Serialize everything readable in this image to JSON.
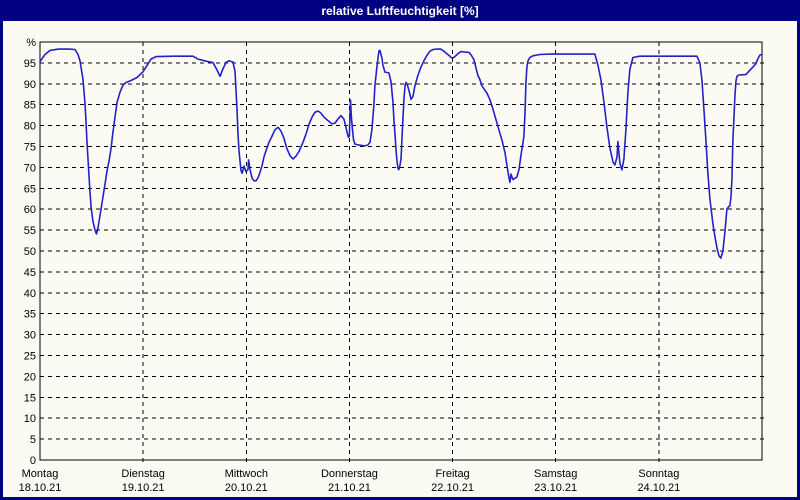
{
  "window": {
    "title": "relative Luftfeuchtigkeit [%]"
  },
  "colors": {
    "titlebar_bg": "#000080",
    "titlebar_text": "#ffffff",
    "window_border": "#000080",
    "canvas_bg": "#fbfbf3",
    "line": "#2222c8",
    "grid": "#000000",
    "label": "#000000"
  },
  "chart_data": {
    "type": "line",
    "title": "relative Luftfeuchtigkeit [%]",
    "ylabel": "%",
    "xlabel": "",
    "ylim": [
      0,
      100
    ],
    "y_ticks": [
      0,
      5,
      10,
      15,
      20,
      25,
      30,
      35,
      40,
      45,
      50,
      55,
      60,
      65,
      70,
      75,
      80,
      85,
      90,
      95
    ],
    "grid": "dashed",
    "legend": "none",
    "x_axis": {
      "unit": "days_since_monday_00h",
      "range": [
        0,
        7
      ],
      "day_labels": [
        {
          "name": "Montag",
          "date": "18.10.21"
        },
        {
          "name": "Dienstag",
          "date": "19.10.21"
        },
        {
          "name": "Mittwoch",
          "date": "20.10.21"
        },
        {
          "name": "Donnerstag",
          "date": "21.10.21"
        },
        {
          "name": "Freitag",
          "date": "22.10.21"
        },
        {
          "name": "Samstag",
          "date": "23.10.21"
        },
        {
          "name": "Sonntag",
          "date": "24.10.21"
        }
      ]
    },
    "series": [
      {
        "name": "relative Luftfeuchtigkeit",
        "color": "#2222c8",
        "points": [
          [
            0.0,
            95.3
          ],
          [
            0.048,
            97.0
          ],
          [
            0.097,
            98.0
          ],
          [
            0.18,
            98.3
          ],
          [
            0.28,
            98.3
          ],
          [
            0.339,
            98.2
          ],
          [
            0.368,
            97.0
          ],
          [
            0.388,
            95.5
          ],
          [
            0.417,
            91.0
          ],
          [
            0.437,
            85.0
          ],
          [
            0.446,
            81.0
          ],
          [
            0.456,
            76.0
          ],
          [
            0.465,
            72.0
          ],
          [
            0.475,
            68.0
          ],
          [
            0.485,
            64.0
          ],
          [
            0.495,
            60.5
          ],
          [
            0.514,
            57.0
          ],
          [
            0.533,
            55.0
          ],
          [
            0.548,
            54.1
          ],
          [
            0.562,
            55.5
          ],
          [
            0.572,
            57.0
          ],
          [
            0.591,
            60.0
          ],
          [
            0.611,
            63.0
          ],
          [
            0.63,
            66.0
          ],
          [
            0.649,
            69.0
          ],
          [
            0.669,
            71.5
          ],
          [
            0.688,
            74.5
          ],
          [
            0.708,
            78.5
          ],
          [
            0.727,
            82.0
          ],
          [
            0.747,
            85.5
          ],
          [
            0.776,
            88.0
          ],
          [
            0.805,
            89.7
          ],
          [
            0.834,
            90.3
          ],
          [
            0.882,
            90.8
          ],
          [
            0.94,
            91.5
          ],
          [
            1.0,
            92.9
          ],
          [
            1.037,
            94.4
          ],
          [
            1.076,
            95.9
          ],
          [
            1.125,
            96.5
          ],
          [
            1.3,
            96.6
          ],
          [
            1.483,
            96.6
          ],
          [
            1.532,
            95.9
          ],
          [
            1.61,
            95.4
          ],
          [
            1.677,
            95.1
          ],
          [
            1.716,
            93.3
          ],
          [
            1.745,
            91.8
          ],
          [
            1.774,
            93.6
          ],
          [
            1.803,
            95.1
          ],
          [
            1.832,
            95.5
          ],
          [
            1.871,
            95.2
          ],
          [
            1.891,
            93.0
          ],
          [
            1.91,
            84.0
          ],
          [
            1.92,
            78.0
          ],
          [
            1.929,
            74.0
          ],
          [
            1.939,
            71.5
          ],
          [
            1.949,
            69.3
          ],
          [
            1.959,
            68.6
          ],
          [
            1.978,
            70.3
          ],
          [
            1.997,
            69.0
          ],
          [
            2.017,
            69.5
          ],
          [
            2.022,
            71.8
          ],
          [
            2.036,
            69.5
          ],
          [
            2.056,
            67.4
          ],
          [
            2.075,
            66.8
          ],
          [
            2.094,
            66.8
          ],
          [
            2.114,
            67.5
          ],
          [
            2.133,
            68.8
          ],
          [
            2.153,
            70.5
          ],
          [
            2.172,
            72.5
          ],
          [
            2.191,
            74.0
          ],
          [
            2.22,
            76.0
          ],
          [
            2.249,
            77.5
          ],
          [
            2.278,
            79.0
          ],
          [
            2.307,
            79.6
          ],
          [
            2.336,
            78.7
          ],
          [
            2.365,
            77.0
          ],
          [
            2.394,
            74.5
          ],
          [
            2.424,
            72.8
          ],
          [
            2.453,
            72.0
          ],
          [
            2.482,
            72.7
          ],
          [
            2.511,
            73.8
          ],
          [
            2.55,
            76.0
          ],
          [
            2.579,
            78.0
          ],
          [
            2.608,
            80.3
          ],
          [
            2.637,
            82.0
          ],
          [
            2.666,
            83.2
          ],
          [
            2.695,
            83.5
          ],
          [
            2.724,
            83.0
          ],
          [
            2.753,
            82.0
          ],
          [
            2.792,
            81.2
          ],
          [
            2.831,
            80.4
          ],
          [
            2.86,
            80.6
          ],
          [
            2.889,
            81.6
          ],
          [
            2.918,
            82.4
          ],
          [
            2.947,
            81.5
          ],
          [
            2.976,
            78.5
          ],
          [
            2.99,
            77.2
          ],
          [
            3.0,
            77.5
          ],
          [
            3.005,
            82.0
          ],
          [
            3.01,
            86.1
          ],
          [
            3.019,
            82.0
          ],
          [
            3.029,
            79.3
          ],
          [
            3.039,
            76.6
          ],
          [
            3.053,
            75.6
          ],
          [
            3.077,
            75.4
          ],
          [
            3.102,
            75.3
          ],
          [
            3.131,
            75.2
          ],
          [
            3.16,
            75.2
          ],
          [
            3.18,
            75.4
          ],
          [
            3.199,
            76.0
          ],
          [
            3.218,
            79.0
          ],
          [
            3.228,
            82.0
          ],
          [
            3.237,
            85.0
          ],
          [
            3.247,
            89.5
          ],
          [
            3.266,
            94.0
          ],
          [
            3.286,
            97.8
          ],
          [
            3.296,
            98.0
          ],
          [
            3.306,
            97.0
          ],
          [
            3.315,
            96.2
          ],
          [
            3.325,
            94.5
          ],
          [
            3.344,
            92.8
          ],
          [
            3.364,
            92.7
          ],
          [
            3.383,
            92.6
          ],
          [
            3.403,
            90.5
          ],
          [
            3.422,
            85.5
          ],
          [
            3.432,
            81.0
          ],
          [
            3.442,
            78.0
          ],
          [
            3.451,
            74.5
          ],
          [
            3.461,
            71.5
          ],
          [
            3.471,
            69.7
          ],
          [
            3.48,
            69.5
          ],
          [
            3.49,
            70.5
          ],
          [
            3.5,
            72.0
          ],
          [
            3.51,
            77.0
          ],
          [
            3.519,
            82.0
          ],
          [
            3.529,
            86.5
          ],
          [
            3.539,
            89.5
          ],
          [
            3.548,
            90.3
          ],
          [
            3.558,
            90.0
          ],
          [
            3.577,
            88.5
          ],
          [
            3.597,
            86.3
          ],
          [
            3.616,
            87.0
          ],
          [
            3.635,
            89.5
          ],
          [
            3.664,
            92.0
          ],
          [
            3.693,
            94.0
          ],
          [
            3.722,
            95.5
          ],
          [
            3.751,
            96.8
          ],
          [
            3.78,
            97.8
          ],
          [
            3.81,
            98.2
          ],
          [
            3.848,
            98.3
          ],
          [
            3.887,
            98.3
          ],
          [
            3.916,
            97.8
          ],
          [
            3.945,
            97.2
          ],
          [
            3.974,
            96.6
          ],
          [
            3.985,
            96.3
          ],
          [
            4.004,
            96.2
          ],
          [
            4.023,
            96.5
          ],
          [
            4.052,
            97.2
          ],
          [
            4.081,
            97.7
          ],
          [
            4.12,
            97.6
          ],
          [
            4.159,
            97.5
          ],
          [
            4.183,
            96.8
          ],
          [
            4.207,
            95.8
          ],
          [
            4.227,
            93.8
          ],
          [
            4.246,
            92.0
          ],
          [
            4.265,
            91.0
          ],
          [
            4.285,
            89.5
          ],
          [
            4.304,
            88.8
          ],
          [
            4.333,
            87.8
          ],
          [
            4.362,
            86.2
          ],
          [
            4.391,
            84.0
          ],
          [
            4.42,
            81.5
          ],
          [
            4.449,
            79.0
          ],
          [
            4.479,
            76.5
          ],
          [
            4.508,
            73.5
          ],
          [
            4.527,
            70.5
          ],
          [
            4.547,
            67.5
          ],
          [
            4.556,
            66.4
          ],
          [
            4.566,
            68.4
          ],
          [
            4.585,
            67.1
          ],
          [
            4.605,
            67.4
          ],
          [
            4.624,
            67.7
          ],
          [
            4.644,
            69.5
          ],
          [
            4.663,
            73.0
          ],
          [
            4.682,
            75.8
          ],
          [
            4.692,
            77.5
          ],
          [
            4.702,
            83.0
          ],
          [
            4.711,
            90.0
          ],
          [
            4.721,
            94.0
          ],
          [
            4.731,
            95.5
          ],
          [
            4.75,
            96.3
          ],
          [
            4.779,
            96.7
          ],
          [
            4.847,
            97.0
          ],
          [
            4.944,
            97.1
          ],
          [
            5.041,
            97.1
          ],
          [
            5.2,
            97.1
          ],
          [
            5.38,
            97.1
          ],
          [
            5.409,
            94.5
          ],
          [
            5.438,
            91.0
          ],
          [
            5.468,
            85.5
          ],
          [
            5.497,
            79.5
          ],
          [
            5.526,
            74.5
          ],
          [
            5.555,
            71.3
          ],
          [
            5.574,
            70.6
          ],
          [
            5.594,
            72.5
          ],
          [
            5.603,
            76.2
          ],
          [
            5.613,
            73.5
          ],
          [
            5.622,
            71.0
          ],
          [
            5.642,
            69.4
          ],
          [
            5.661,
            72.0
          ],
          [
            5.68,
            79.0
          ],
          [
            5.7,
            88.0
          ],
          [
            5.719,
            93.5
          ],
          [
            5.748,
            96.3
          ],
          [
            5.816,
            96.6
          ],
          [
            5.99,
            96.6
          ],
          [
            6.2,
            96.6
          ],
          [
            6.369,
            96.6
          ],
          [
            6.398,
            95.0
          ],
          [
            6.417,
            91.0
          ],
          [
            6.437,
            84.0
          ],
          [
            6.456,
            76.5
          ],
          [
            6.475,
            68.5
          ],
          [
            6.495,
            62.5
          ],
          [
            6.524,
            56.5
          ],
          [
            6.543,
            53.5
          ],
          [
            6.563,
            50.8
          ],
          [
            6.582,
            48.9
          ],
          [
            6.601,
            48.3
          ],
          [
            6.621,
            50.0
          ],
          [
            6.64,
            54.5
          ],
          [
            6.66,
            60.0
          ],
          [
            6.679,
            60.7
          ],
          [
            6.689,
            60.8
          ],
          [
            6.699,
            63.0
          ],
          [
            6.708,
            67.0
          ],
          [
            6.718,
            76.6
          ],
          [
            6.727,
            81.0
          ],
          [
            6.737,
            87.0
          ],
          [
            6.747,
            90.5
          ],
          [
            6.757,
            91.8
          ],
          [
            6.776,
            92.1
          ],
          [
            6.844,
            92.2
          ],
          [
            6.873,
            93.0
          ],
          [
            6.912,
            94.0
          ],
          [
            6.941,
            94.8
          ],
          [
            6.96,
            96.0
          ],
          [
            6.98,
            96.9
          ],
          [
            7.0,
            97.0
          ]
        ]
      }
    ]
  }
}
